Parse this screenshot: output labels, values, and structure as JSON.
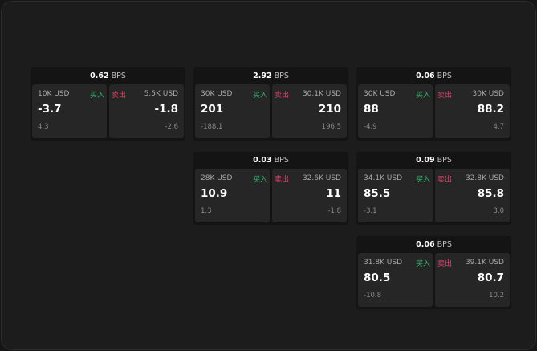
{
  "colors": {
    "buy": "#2fb36a",
    "sell": "#e0436b"
  },
  "labels": {
    "buy": "买入",
    "sell": "卖出",
    "unit": "BPS"
  },
  "cards": [
    {
      "spread": "0.62",
      "buy": {
        "size": "10K USD",
        "price": "-3.7",
        "change": "4.3"
      },
      "sell": {
        "size": "5.5K USD",
        "price": "-1.8",
        "change": "-2.6"
      }
    },
    {
      "spread": "2.92",
      "buy": {
        "size": "30K USD",
        "price": "201",
        "change": "-188.1"
      },
      "sell": {
        "size": "30.1K USD",
        "price": "210",
        "change": "196.5"
      }
    },
    {
      "spread": "0.06",
      "buy": {
        "size": "30K USD",
        "price": "88",
        "change": "-4.9"
      },
      "sell": {
        "size": "30K USD",
        "price": "88.2",
        "change": "4.7"
      }
    },
    {
      "spread": "0.03",
      "buy": {
        "size": "28K USD",
        "price": "10.9",
        "change": "1.3"
      },
      "sell": {
        "size": "32.6K USD",
        "price": "11",
        "change": "-1.8"
      }
    },
    {
      "spread": "0.09",
      "buy": {
        "size": "34.1K USD",
        "price": "85.5",
        "change": "-3.1"
      },
      "sell": {
        "size": "32.8K USD",
        "price": "85.8",
        "change": "3.0"
      }
    },
    {
      "spread": "0.06",
      "buy": {
        "size": "31.8K USD",
        "price": "80.5",
        "change": "-10.8"
      },
      "sell": {
        "size": "39.1K USD",
        "price": "80.7",
        "change": "10.2"
      }
    }
  ]
}
